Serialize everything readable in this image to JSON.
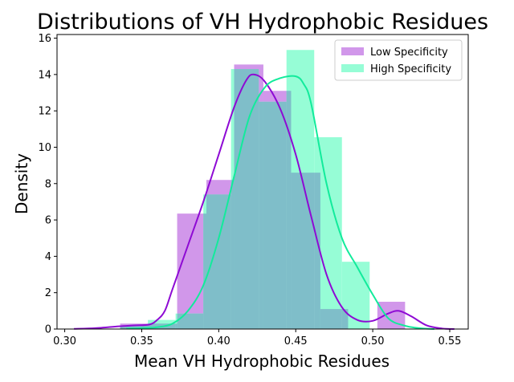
{
  "chart_data": {
    "type": "histogram",
    "title": "Distributions of VH Hydrophobic Residues",
    "xlabel": "Mean VH Hydrophobic Residues",
    "ylabel": "Density",
    "xlim": [
      0.295,
      0.562
    ],
    "ylim": [
      0,
      16.2
    ],
    "xticks": [
      0.3,
      0.35,
      0.4,
      0.45,
      0.5,
      0.55
    ],
    "xtick_labels": [
      "0.30",
      "0.35",
      "0.40",
      "0.45",
      "0.50",
      "0.55"
    ],
    "yticks": [
      0,
      2,
      4,
      6,
      8,
      10,
      12,
      14,
      16
    ],
    "ytick_labels": [
      "0",
      "2",
      "4",
      "6",
      "8",
      "10",
      "12",
      "14",
      "16"
    ],
    "grid": false,
    "legend_position": "top-right",
    "overlap_color": "#7fbec9",
    "series": [
      {
        "name": "Low Specificity",
        "color": "#d197ea",
        "kde_color": "#8e0ad4",
        "bins": [
          {
            "x0": 0.336,
            "x1": 0.355,
            "y": 0.3
          },
          {
            "x0": 0.355,
            "x1": 0.373,
            "y": 0.3
          },
          {
            "x0": 0.373,
            "x1": 0.392,
            "y": 6.35
          },
          {
            "x0": 0.392,
            "x1": 0.41,
            "y": 8.2
          },
          {
            "x0": 0.41,
            "x1": 0.429,
            "y": 14.55
          },
          {
            "x0": 0.429,
            "x1": 0.447,
            "y": 13.1
          },
          {
            "x0": 0.447,
            "x1": 0.466,
            "y": 8.6
          },
          {
            "x0": 0.466,
            "x1": 0.484,
            "y": 1.1
          },
          {
            "x0": 0.484,
            "x1": 0.503,
            "y": 0
          },
          {
            "x0": 0.503,
            "x1": 0.521,
            "y": 1.5
          }
        ],
        "kde": [
          [
            0.306,
            0.01
          ],
          [
            0.32,
            0.05
          ],
          [
            0.335,
            0.15
          ],
          [
            0.345,
            0.2
          ],
          [
            0.355,
            0.25
          ],
          [
            0.36,
            0.5
          ],
          [
            0.365,
            1.0
          ],
          [
            0.37,
            2.2
          ],
          [
            0.38,
            4.6
          ],
          [
            0.39,
            7.0
          ],
          [
            0.4,
            9.6
          ],
          [
            0.41,
            12.2
          ],
          [
            0.418,
            13.7
          ],
          [
            0.423,
            14.0
          ],
          [
            0.43,
            13.6
          ],
          [
            0.44,
            12.1
          ],
          [
            0.45,
            9.6
          ],
          [
            0.46,
            6.2
          ],
          [
            0.47,
            3.0
          ],
          [
            0.48,
            1.2
          ],
          [
            0.49,
            0.5
          ],
          [
            0.5,
            0.45
          ],
          [
            0.51,
            0.85
          ],
          [
            0.517,
            1.0
          ],
          [
            0.525,
            0.7
          ],
          [
            0.535,
            0.2
          ],
          [
            0.545,
            0.03
          ],
          [
            0.553,
            0.0
          ]
        ]
      },
      {
        "name": "High Specificity",
        "color": "#96fdd6",
        "kde_color": "#12eb9b",
        "bins": [
          {
            "x0": 0.336,
            "x1": 0.354,
            "y": 0.2
          },
          {
            "x0": 0.354,
            "x1": 0.372,
            "y": 0.5
          },
          {
            "x0": 0.372,
            "x1": 0.39,
            "y": 0.85
          },
          {
            "x0": 0.39,
            "x1": 0.408,
            "y": 7.4
          },
          {
            "x0": 0.408,
            "x1": 0.426,
            "y": 14.3
          },
          {
            "x0": 0.426,
            "x1": 0.444,
            "y": 12.5
          },
          {
            "x0": 0.444,
            "x1": 0.462,
            "y": 15.35
          },
          {
            "x0": 0.462,
            "x1": 0.48,
            "y": 10.55
          },
          {
            "x0": 0.48,
            "x1": 0.498,
            "y": 3.7
          },
          {
            "x0": 0.498,
            "x1": 0.516,
            "y": 0
          }
        ],
        "kde": [
          [
            0.34,
            0.02
          ],
          [
            0.35,
            0.05
          ],
          [
            0.36,
            0.1
          ],
          [
            0.37,
            0.3
          ],
          [
            0.38,
            1.0
          ],
          [
            0.39,
            2.4
          ],
          [
            0.4,
            5.0
          ],
          [
            0.41,
            8.4
          ],
          [
            0.42,
            11.7
          ],
          [
            0.43,
            13.3
          ],
          [
            0.44,
            13.8
          ],
          [
            0.45,
            13.9
          ],
          [
            0.455,
            13.5
          ],
          [
            0.46,
            12.4
          ],
          [
            0.47,
            8.0
          ],
          [
            0.48,
            5.0
          ],
          [
            0.49,
            3.4
          ],
          [
            0.5,
            1.9
          ],
          [
            0.51,
            0.6
          ],
          [
            0.52,
            0.2
          ],
          [
            0.53,
            0.05
          ],
          [
            0.54,
            0.0
          ]
        ]
      }
    ]
  }
}
